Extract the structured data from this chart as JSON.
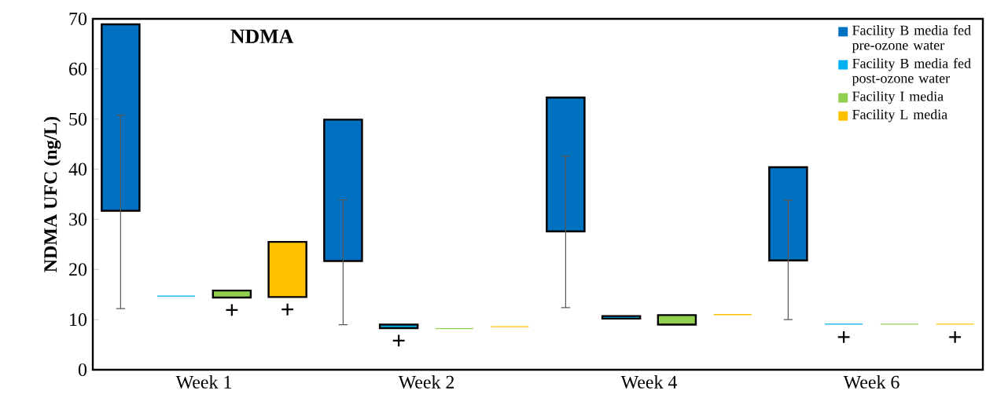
{
  "chart_data": {
    "type": "bar",
    "title": "NDMA",
    "ylabel": "NDMA UFC (ng/L)",
    "categories": [
      "Week 1",
      "Week 2",
      "Week 4",
      "Week 6"
    ],
    "series": [
      {
        "name": "Facility B media fed pre-ozone water",
        "color": "#0070c0",
        "base": [
          31.7,
          21.7,
          27.6,
          21.8
        ],
        "values": [
          37.2,
          28.2,
          26.7,
          18.6
        ],
        "errors": [
          [
            12.2,
            50.8
          ],
          [
            9.0,
            33.9
          ],
          [
            12.4,
            42.6
          ],
          [
            10.0,
            33.8
          ]
        ]
      },
      {
        "name": "Facility B media fed post-ozone water",
        "color": "#00b0f0",
        "base": [
          14.6,
          8.3,
          10.2,
          9.0
        ],
        "values": [
          0.2,
          0.7,
          0.5,
          0.2
        ],
        "value_labels": [
          null,
          "+",
          null,
          "+"
        ]
      },
      {
        "name": "Facility I media",
        "color": "#92d050",
        "base": [
          14.4,
          8.1,
          9.0,
          9.0
        ],
        "values": [
          1.4,
          0.2,
          1.9,
          0.2
        ],
        "value_labels": [
          "+",
          null,
          null,
          null
        ]
      },
      {
        "name": "Facility L media",
        "color": "#ffc000",
        "base": [
          14.5,
          8.5,
          10.9,
          9.0
        ],
        "values": [
          11.0,
          0.2,
          0.2,
          0.2
        ],
        "value_labels": [
          "+",
          null,
          null,
          "+"
        ]
      }
    ],
    "ylim": [
      0,
      70
    ],
    "yticks": [
      0,
      10,
      20,
      30,
      40,
      50,
      60,
      70
    ],
    "grid": false,
    "legend": "top right"
  }
}
